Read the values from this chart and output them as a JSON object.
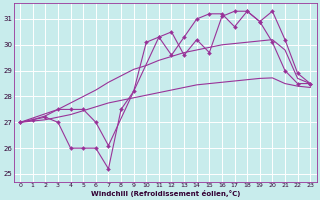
{
  "xlabel": "Windchill (Refroidissement éolien,°C)",
  "bg_color": "#c8ecec",
  "grid_color": "#b0d8d8",
  "line_color": "#993399",
  "xlim": [
    -0.5,
    23.5
  ],
  "ylim": [
    24.7,
    31.6
  ],
  "yticks": [
    25,
    26,
    27,
    28,
    29,
    30,
    31
  ],
  "xticks": [
    0,
    1,
    2,
    3,
    4,
    5,
    6,
    7,
    8,
    9,
    10,
    11,
    12,
    13,
    14,
    15,
    16,
    17,
    18,
    19,
    20,
    21,
    22,
    23
  ],
  "series": [
    {
      "x": [
        0,
        1,
        2,
        3,
        4,
        5,
        6,
        7,
        8,
        9,
        10,
        11,
        12,
        13,
        14,
        15,
        16,
        17,
        18,
        19,
        20,
        21,
        22,
        23
      ],
      "y": [
        27.0,
        27.05,
        27.1,
        27.2,
        27.3,
        27.45,
        27.6,
        27.75,
        27.85,
        27.95,
        28.05,
        28.15,
        28.25,
        28.35,
        28.45,
        28.5,
        28.55,
        28.6,
        28.65,
        28.7,
        28.72,
        28.5,
        28.4,
        28.35
      ],
      "marker": false
    },
    {
      "x": [
        0,
        1,
        2,
        3,
        4,
        5,
        6,
        7,
        8,
        9,
        10,
        11,
        12,
        13,
        14,
        15,
        16,
        17,
        18,
        19,
        20,
        21,
        22,
        23
      ],
      "y": [
        27.0,
        27.1,
        27.25,
        27.5,
        27.75,
        28.0,
        28.25,
        28.55,
        28.8,
        29.05,
        29.2,
        29.4,
        29.55,
        29.7,
        29.8,
        29.9,
        30.0,
        30.05,
        30.1,
        30.15,
        30.2,
        29.8,
        28.7,
        28.5
      ],
      "marker": false
    },
    {
      "x": [
        0,
        3,
        4,
        5,
        6,
        7,
        11,
        12,
        13,
        14,
        15,
        16,
        17,
        18,
        19,
        20,
        21,
        22,
        23
      ],
      "y": [
        27.0,
        27.5,
        27.5,
        27.5,
        27.0,
        26.1,
        30.3,
        30.5,
        29.6,
        30.2,
        29.7,
        31.1,
        31.3,
        31.3,
        30.9,
        31.3,
        30.2,
        28.9,
        28.5
      ],
      "marker": true
    },
    {
      "x": [
        0,
        1,
        2,
        3,
        4,
        5,
        6,
        7,
        8,
        9,
        10,
        11,
        12,
        13,
        14,
        15,
        16,
        17,
        18,
        19,
        20,
        21,
        22,
        23
      ],
      "y": [
        27.0,
        27.1,
        27.2,
        27.0,
        26.0,
        26.0,
        26.0,
        25.2,
        27.5,
        28.2,
        30.1,
        30.3,
        29.6,
        30.3,
        31.0,
        31.2,
        31.2,
        30.7,
        31.3,
        30.9,
        30.1,
        29.0,
        28.5,
        28.5
      ],
      "marker": true
    }
  ]
}
